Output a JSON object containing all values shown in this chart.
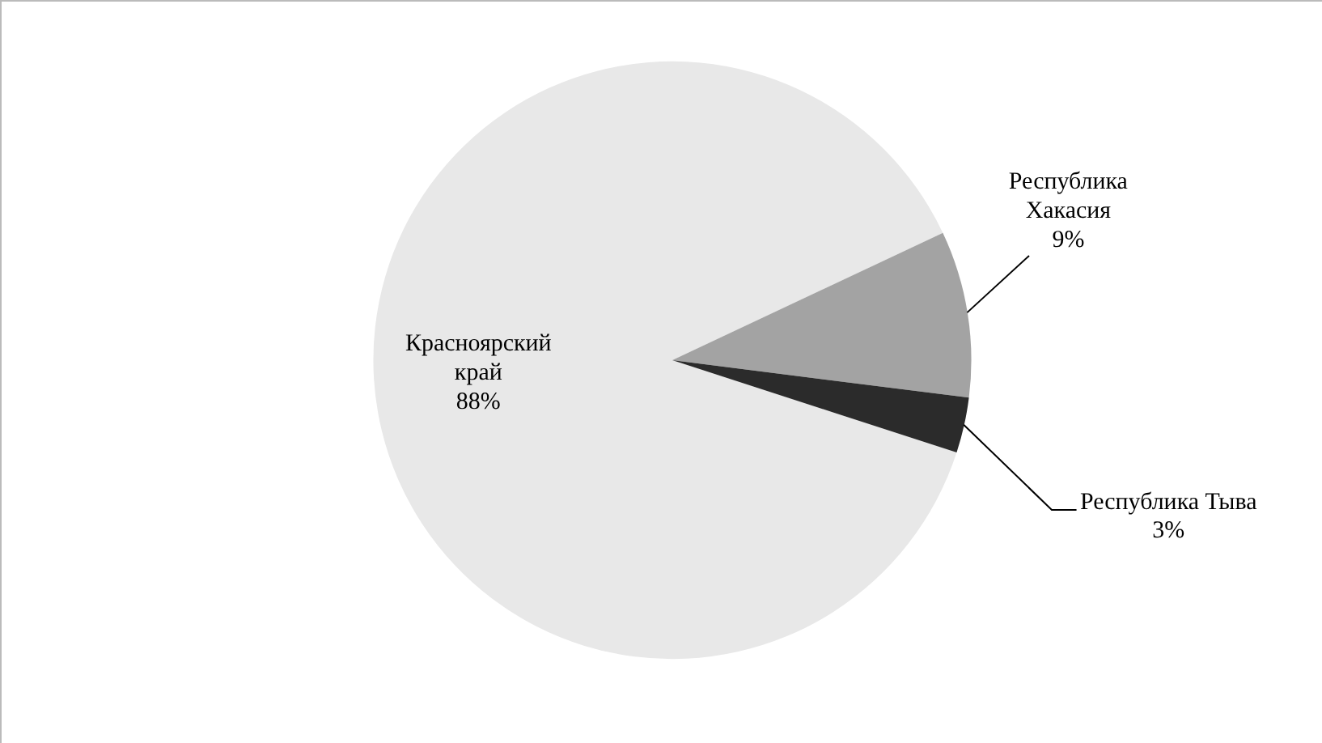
{
  "chart_data": {
    "type": "pie",
    "categories": [
      "Красноярский край",
      "Республика Хакасия",
      "Республика Тыва"
    ],
    "values": [
      88,
      9,
      3
    ],
    "colors": [
      "#e8e8e8",
      "#a3a3a3",
      "#2b2b2b"
    ],
    "value_labels": [
      "88%",
      "9%",
      "3%"
    ],
    "legend": false
  }
}
